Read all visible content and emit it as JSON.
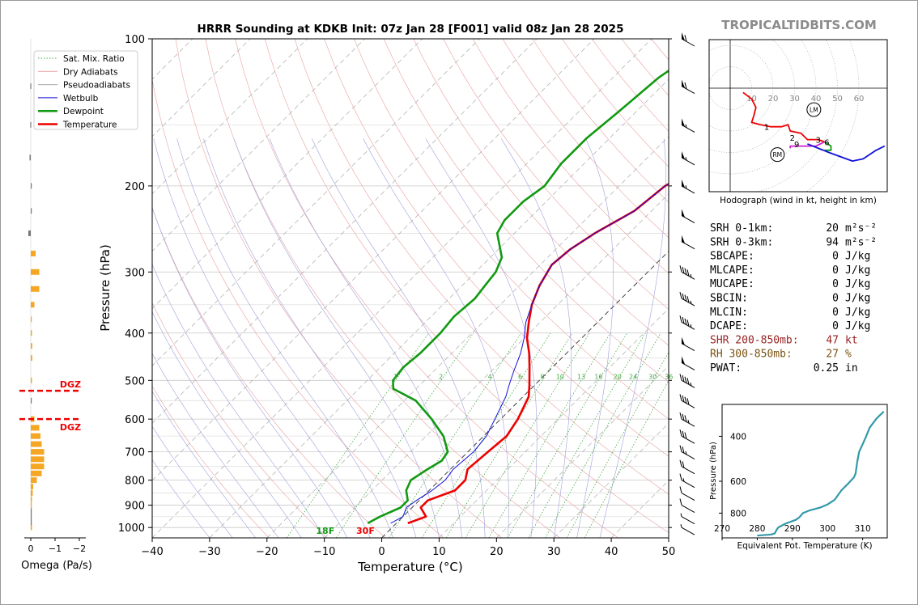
{
  "brand": "TROPICALTIDBITS.COM",
  "chart_data": [
    {
      "type": "line",
      "subtype": "skew-t",
      "title": "HRRR Sounding at KDKB Init: 07z Jan 28 [F001] valid 08z Jan 28 2025",
      "xlabel": "Temperature (°C)",
      "ylabel": "Pressure (hPa)",
      "xlim": [
        -40,
        50
      ],
      "ylim": [
        1050,
        100
      ],
      "yscale": "log",
      "x_ticks": [
        -40,
        -30,
        -20,
        -10,
        0,
        10,
        20,
        30,
        40,
        50
      ],
      "x_tick_labels": [
        "−40",
        "−30",
        "−20",
        "−10",
        "0",
        "10",
        "20",
        "30",
        "40",
        "50"
      ],
      "y_ticks": [
        100,
        200,
        300,
        400,
        500,
        600,
        700,
        800,
        900,
        1000
      ],
      "y_tick_labels": [
        "100",
        "200",
        "300",
        "400",
        "500",
        "600",
        "700",
        "800",
        "900",
        "1000"
      ],
      "legend": {
        "placement": "top-left",
        "entries": [
          "Sat. Mix. Ratio",
          "Dry Adiabats",
          "Pseudoadiabats",
          "Wetbulb",
          "Dewpoint",
          "Temperature"
        ]
      },
      "colors": {
        "temperature": "#ee0000",
        "dewpoint": "#119911",
        "wetbulb": "#1111dd",
        "dry": "#e8a0a0",
        "moist": "#a0a0dd",
        "mix": "#44aa44"
      },
      "series": [
        {
          "name": "Temperature",
          "points": [
            [
              2,
              980
            ],
            [
              4,
              950
            ],
            [
              1.5,
              910
            ],
            [
              1.5,
              880
            ],
            [
              4.5,
              840
            ],
            [
              4.5,
              800
            ],
            [
              3,
              760
            ],
            [
              3.5,
              700
            ],
            [
              4,
              650
            ],
            [
              3,
              600
            ],
            [
              1,
              540
            ],
            [
              -1,
              510
            ],
            [
              -4,
              470
            ],
            [
              -6.5,
              440
            ],
            [
              -9.5,
              410
            ],
            [
              -12,
              380
            ],
            [
              -14.5,
              350
            ],
            [
              -16.5,
              320
            ],
            [
              -18,
              290
            ],
            [
              -17.5,
              270
            ],
            [
              -16,
              250
            ],
            [
              -13,
              225
            ],
            [
              -12,
              200
            ],
            [
              -8,
              175
            ],
            [
              -5,
              160
            ],
            [
              -3,
              140
            ],
            [
              -1,
              120
            ],
            [
              1,
              100
            ]
          ]
        },
        {
          "name": "Dewpoint",
          "points": [
            [
              -5,
              980
            ],
            [
              -4,
              950
            ],
            [
              -2,
              910
            ],
            [
              -2,
              880
            ],
            [
              -4,
              840
            ],
            [
              -5,
              800
            ],
            [
              -4,
              760
            ],
            [
              -3,
              730
            ],
            [
              -3.5,
              700
            ],
            [
              -7,
              650
            ],
            [
              -12,
              600
            ],
            [
              -18,
              550
            ],
            [
              -24,
              520
            ],
            [
              -25.5,
              500
            ],
            [
              -26,
              470
            ],
            [
              -25.5,
              440
            ],
            [
              -25.5,
              400
            ],
            [
              -26,
              370
            ],
            [
              -25.5,
              340
            ],
            [
              -26,
              320
            ],
            [
              -26.5,
              300
            ],
            [
              -28,
              280
            ],
            [
              -33,
              250
            ],
            [
              -34,
              235
            ],
            [
              -34,
              215
            ],
            [
              -33,
              200
            ],
            [
              -34,
              180
            ],
            [
              -34,
              160
            ],
            [
              -33,
              140
            ],
            [
              -32,
              120
            ],
            [
              -29,
              100
            ]
          ]
        },
        {
          "name": "Wetbulb",
          "points": [
            [
              -1,
              980
            ],
            [
              0,
              950
            ],
            [
              -1,
              910
            ],
            [
              -0.5,
              880
            ],
            [
              0.5,
              840
            ],
            [
              1,
              800
            ],
            [
              0.5,
              760
            ],
            [
              1,
              700
            ],
            [
              0.5,
              650
            ],
            [
              -1,
              600
            ],
            [
              -3,
              540
            ],
            [
              -4.5,
              510
            ],
            [
              -6,
              480
            ],
            [
              -8,
              440
            ],
            [
              -10,
              410
            ],
            [
              -12.5,
              380
            ],
            [
              -14.5,
              350
            ],
            [
              -16.5,
              320
            ],
            [
              -18,
              290
            ],
            [
              -17.5,
              270
            ],
            [
              -16,
              250
            ],
            [
              -13,
              225
            ],
            [
              -12,
              200
            ],
            [
              -8,
              175
            ],
            [
              -5,
              160
            ],
            [
              -3,
              140
            ],
            [
              -1,
              120
            ],
            [
              1,
              100
            ]
          ]
        }
      ],
      "annotations": [
        {
          "text": "18F",
          "x": -6,
          "p": 1010,
          "color": "#119911"
        },
        {
          "text": "30F",
          "x": 1,
          "p": 1010,
          "color": "#ee0000"
        }
      ],
      "mix_ratio_labels": [
        "1",
        "2",
        "4",
        "6",
        "8",
        "10",
        "13",
        "16",
        "20",
        "24",
        "30",
        "36"
      ],
      "mix_ratio_values": [
        1,
        2,
        4,
        6,
        8,
        10,
        13,
        16,
        20,
        24,
        30,
        36
      ],
      "wind_barbs_p": [
        100,
        125,
        150,
        175,
        200,
        230,
        260,
        300,
        340,
        380,
        420,
        460,
        500,
        550,
        600,
        650,
        700,
        750,
        800,
        850,
        900,
        950,
        1000
      ],
      "wind_barbs_speed_kt": [
        60,
        60,
        55,
        55,
        55,
        50,
        50,
        45,
        45,
        45,
        50,
        50,
        45,
        40,
        35,
        30,
        25,
        20,
        15,
        10,
        10,
        5,
        5
      ]
    },
    {
      "type": "bar",
      "subtype": "omega-profile",
      "xlabel": "Omega (Pa/s)",
      "xlim": [
        0,
        -2
      ],
      "x_ticks": [
        0,
        -1,
        -2
      ],
      "x_tick_labels": [
        "0",
        "−1",
        "−2"
      ],
      "pressure_levels": [
        1000,
        975,
        950,
        925,
        900,
        875,
        850,
        825,
        800,
        775,
        750,
        725,
        700,
        675,
        650,
        625,
        600,
        550,
        500,
        450,
        425,
        400,
        375,
        350,
        325,
        300,
        275,
        250,
        225,
        200,
        175,
        150,
        125
      ],
      "values": [
        0.05,
        0.02,
        0.02,
        0.03,
        0.04,
        0.05,
        0.08,
        0.1,
        0.25,
        0.45,
        0.55,
        0.55,
        0.55,
        0.45,
        0.4,
        0.35,
        0.15,
        0.02,
        0.05,
        0.06,
        0.06,
        0.05,
        0.04,
        0.15,
        0.35,
        0.35,
        0.2,
        -0.1,
        0.02,
        0.0,
        -0.05,
        -0.02,
        -0.02
      ],
      "dgz_label": "DGZ",
      "dgz_levels": [
        525,
        600
      ]
    },
    {
      "type": "line",
      "subtype": "hodograph",
      "title": "Hodograph (wind in kt, height in km)",
      "rings_kt": [
        10,
        20,
        30,
        40,
        50,
        60
      ],
      "ring_labels": [
        "10",
        "20",
        "30",
        "40",
        "50",
        "60"
      ],
      "height_labels": [
        {
          "text": "1",
          "u": 17,
          "v": -18
        },
        {
          "text": "2",
          "u": 29,
          "v": -23
        },
        {
          "text": "3",
          "u": 41,
          "v": -24
        },
        {
          "text": "6",
          "u": 45,
          "v": -25
        },
        {
          "text": "9",
          "u": 31,
          "v": -26
        }
      ],
      "storm_motion_labels": [
        {
          "text": "LM",
          "u": 39,
          "v": -10
        },
        {
          "text": "RM",
          "u": 22,
          "v": -31
        }
      ],
      "segments": [
        {
          "color": "#ee0000",
          "points": [
            [
              6,
              -2
            ],
            [
              10,
              -5
            ],
            [
              12,
              -9
            ],
            [
              11,
              -13
            ],
            [
              10,
              -16
            ],
            [
              14,
              -17
            ],
            [
              19,
              -18
            ],
            [
              24,
              -18
            ],
            [
              27,
              -17
            ],
            [
              28,
              -20
            ],
            [
              33,
              -21
            ],
            [
              36,
              -24
            ],
            [
              38,
              -24
            ],
            [
              41,
              -24
            ],
            [
              44,
              -25
            ]
          ]
        },
        {
          "color": "#119911",
          "points": [
            [
              44,
              -25
            ],
            [
              47,
              -27
            ],
            [
              47,
              -29
            ],
            [
              44,
              -29
            ]
          ]
        },
        {
          "color": "#cc22cc",
          "points": [
            [
              44,
              -25
            ],
            [
              40,
              -27
            ],
            [
              34,
              -27
            ],
            [
              28,
              -27
            ],
            [
              28,
              -28
            ]
          ]
        },
        {
          "color": "#1111dd",
          "points": [
            [
              36,
              -26
            ],
            [
              46,
              -30
            ],
            [
              57,
              -34
            ],
            [
              62,
              -33
            ],
            [
              68,
              -29
            ],
            [
              72,
              -27
            ]
          ]
        }
      ]
    },
    {
      "type": "line",
      "subtype": "theta-e-profile",
      "xlabel": "Equivalent Pot. Temperature (K)",
      "ylabel": "Pressure (hPa)",
      "xlim": [
        270,
        317
      ],
      "ylim": [
        1000,
        300
      ],
      "x_ticks": [
        270,
        280,
        290,
        300,
        310
      ],
      "x_tick_labels": [
        "270",
        "280",
        "290",
        "300",
        "310"
      ],
      "y_ticks": [
        400,
        600,
        800
      ],
      "y_tick_labels": [
        "400",
        "600",
        "800"
      ],
      "color": "#3399aa",
      "points": [
        [
          280,
          980
        ],
        [
          284,
          970
        ],
        [
          285,
          960
        ],
        [
          285.5,
          930
        ],
        [
          286,
          910
        ],
        [
          288,
          880
        ],
        [
          291,
          850
        ],
        [
          292,
          830
        ],
        [
          293,
          800
        ],
        [
          295,
          780
        ],
        [
          298,
          760
        ],
        [
          300,
          740
        ],
        [
          302,
          710
        ],
        [
          303,
          680
        ],
        [
          304,
          650
        ],
        [
          306,
          610
        ],
        [
          307.5,
          580
        ],
        [
          308,
          560
        ],
        [
          308.5,
          500
        ],
        [
          309,
          460
        ],
        [
          310,
          430
        ],
        [
          311,
          400
        ],
        [
          312,
          370
        ],
        [
          314,
          340
        ],
        [
          316,
          320
        ]
      ]
    }
  ],
  "indices": [
    {
      "label": "SRH 0-1km:",
      "value": "20",
      "unit": "m²s⁻²",
      "color": "#000000"
    },
    {
      "label": "SRH 0-3km:",
      "value": "94",
      "unit": "m²s⁻²",
      "color": "#000000"
    },
    {
      "label": "SBCAPE:",
      "value": "0",
      "unit": "J/kg",
      "color": "#000000"
    },
    {
      "label": "MLCAPE:",
      "value": "0",
      "unit": "J/kg",
      "color": "#000000"
    },
    {
      "label": "MUCAPE:",
      "value": "0",
      "unit": "J/kg",
      "color": "#000000"
    },
    {
      "label": "SBCIN:",
      "value": "0",
      "unit": "J/kg",
      "color": "#000000"
    },
    {
      "label": "MLCIN:",
      "value": "0",
      "unit": "J/kg",
      "color": "#000000"
    },
    {
      "label": "DCAPE:",
      "value": "0",
      "unit": "J/kg",
      "color": "#000000"
    },
    {
      "label": "SHR 200-850mb:",
      "value": "47",
      "unit": "kt",
      "color": "#992222"
    },
    {
      "label": "RH 300-850mb:",
      "value": "27",
      "unit": "%",
      "color": "#7a5210"
    },
    {
      "label": "PWAT:",
      "value": "0.25",
      "unit": "in",
      "color": "#000000"
    }
  ]
}
